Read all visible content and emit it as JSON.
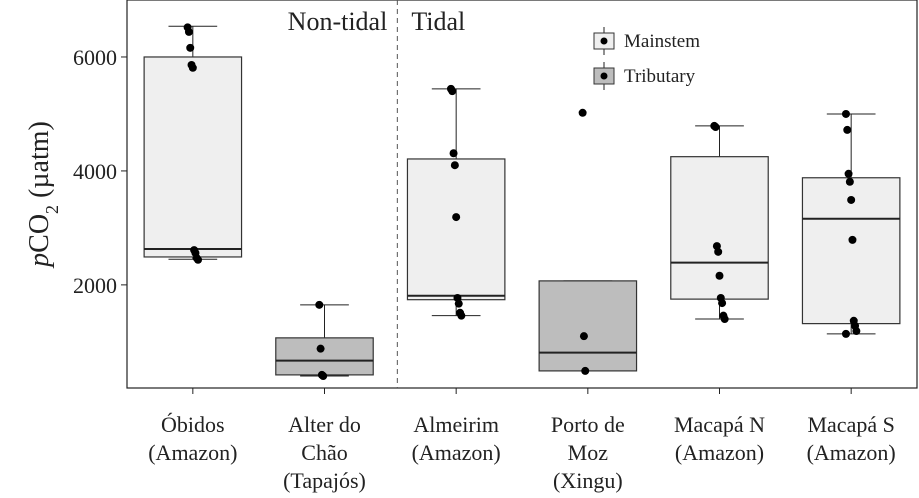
{
  "chart_data": {
    "type": "box",
    "ylabel": {
      "italic": "p",
      "main": "CO",
      "sub": "2",
      "rest": " (µatm)"
    },
    "annotations": [
      "Non-tidal",
      "Tidal"
    ],
    "categories": [
      [
        "Óbidos",
        "(Amazon)"
      ],
      [
        "Alter do",
        "Chão",
        "(Tapajós)"
      ],
      [
        "Almeirim",
        "(Amazon)"
      ],
      [
        "Porto de",
        "Moz",
        "(Xingu)"
      ],
      [
        "Macapá N",
        "(Amazon)"
      ],
      [
        "Macapá S",
        "(Amazon)"
      ]
    ],
    "groups": [
      {
        "name": "Mainstem",
        "color": "#efefef"
      },
      {
        "name": "Tributary",
        "color": "#bdbdbd"
      }
    ],
    "boxes": [
      {
        "group": "Mainstem",
        "whisker_low": 2450,
        "q1": 2490,
        "median": 2630,
        "q3": 6000,
        "whisker_high": 6540,
        "points": [
          6520,
          6440,
          6160,
          5860,
          5810,
          2610,
          2560,
          2470,
          2440
        ]
      },
      {
        "group": "Tributary",
        "whisker_low": 400,
        "q1": 420,
        "median": 670,
        "q3": 1070,
        "whisker_high": 1650,
        "points": [
          1650,
          880,
          420,
          400
        ]
      },
      {
        "group": "Mainstem",
        "whisker_low": 1460,
        "q1": 1740,
        "median": 1810,
        "q3": 4210,
        "whisker_high": 5440,
        "points": [
          5440,
          5400,
          4310,
          4100,
          3190,
          1770,
          1670,
          1510,
          1460
        ]
      },
      {
        "group": "Tributary",
        "whisker_low": 490,
        "q1": 490,
        "median": 810,
        "q3": 2070,
        "whisker_high": 2070,
        "points": [
          5020,
          1100,
          490
        ]
      },
      {
        "group": "Mainstem",
        "whisker_low": 1400,
        "q1": 1750,
        "median": 2390,
        "q3": 4250,
        "whisker_high": 4790,
        "points": [
          4790,
          4770,
          2680,
          2580,
          2160,
          1770,
          1680,
          1460,
          1400
        ]
      },
      {
        "group": "Mainstem",
        "whisker_low": 1140,
        "q1": 1320,
        "median": 3160,
        "q3": 3880,
        "whisker_high": 5000,
        "points": [
          5000,
          4720,
          3950,
          3810,
          3490,
          2790,
          1370,
          1280,
          1190,
          1140
        ]
      }
    ],
    "divider_after": 2,
    "ylim": [
      190,
      7000
    ],
    "yticks": [
      2000,
      4000,
      6000
    ]
  }
}
